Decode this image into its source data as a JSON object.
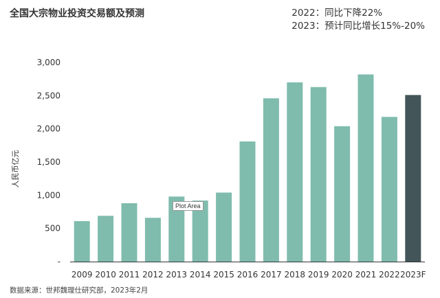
{
  "title": "全国大宗物业投资交易额及预测",
  "notes": [
    "2022：同比下降22%",
    "2023：预计同比增长15%-20%"
  ],
  "source": "数据来源：世邦魏理仕研究部，2023年2月",
  "tooltip": "Plot Area",
  "colors": {
    "bar": "#7fbcad",
    "forecast": "#435559",
    "axis": "#333333"
  },
  "chart_data": {
    "type": "bar",
    "title": "全国大宗物业投资交易额及预测",
    "ylabel": "人民币亿元",
    "xlabel": "",
    "ylim": [
      0,
      3000
    ],
    "yticks": [
      0,
      500,
      1000,
      1500,
      2000,
      2500,
      3000
    ],
    "ytick_labels": [
      "-",
      "500",
      "1,000",
      "1,500",
      "2,000",
      "2,500",
      "3,000"
    ],
    "categories": [
      "2009",
      "2010",
      "2011",
      "2012",
      "2013",
      "2014",
      "2015",
      "2016",
      "2017",
      "2018",
      "2019",
      "2020",
      "2021",
      "2022",
      "2023F"
    ],
    "values": [
      610,
      690,
      880,
      660,
      980,
      920,
      1040,
      1810,
      2460,
      2700,
      2630,
      2040,
      2820,
      2180,
      2510
    ],
    "forecast_index": 14,
    "grid": false
  }
}
